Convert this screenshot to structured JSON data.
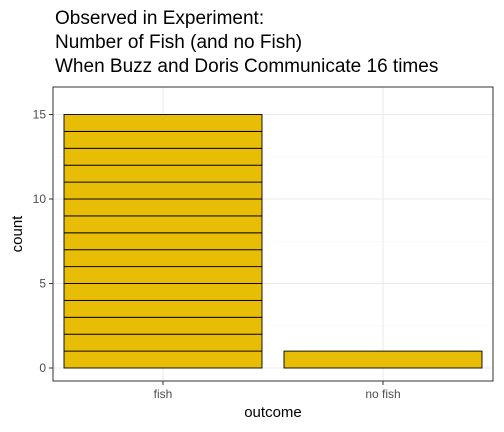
{
  "chart_data": {
    "type": "bar",
    "title": [
      "Observed in Experiment:",
      "Number of Fish (and no Fish)",
      "When Buzz and Doris Communicate 16 times"
    ],
    "xlabel": "outcome",
    "ylabel": "count",
    "categories": [
      "fish",
      "no fish"
    ],
    "values": [
      15,
      1
    ],
    "ylim": [
      0,
      16.75
    ],
    "yticks": [
      0,
      5,
      10,
      15
    ],
    "stacked_unit_blocks": true,
    "bar_fill": "#E7BD05",
    "bar_stroke": "#000000",
    "grid": true,
    "grid_major_color": "#EBEBEB",
    "grid_minor_color": "#F5F5F5",
    "panel_border_color": "#333333",
    "legend": "none"
  }
}
